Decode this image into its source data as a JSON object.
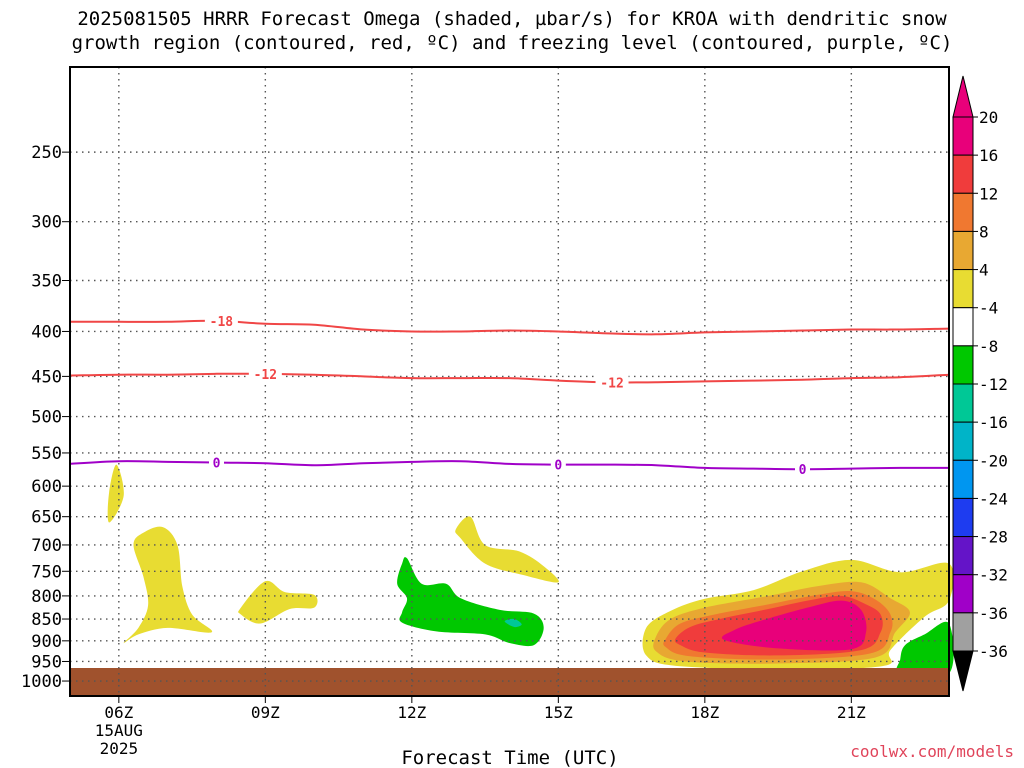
{
  "title": {
    "line1": "2025081505 HRRR Forecast Omega (shaded, µbar/s) for KROA with dendritic snow",
    "line2": "growth region (contoured, red, ºC) and freezing level (contoured, purple, ºC)"
  },
  "credit": "coolwx.com/models",
  "chart_data": {
    "type": "contour",
    "xlabel": "Forecast Time (UTC)",
    "ylabel": "",
    "x_ticks": [
      {
        "hour": 6,
        "label": "06Z",
        "sub": [
          "15AUG",
          "2025"
        ]
      },
      {
        "hour": 9,
        "label": "09Z"
      },
      {
        "hour": 12,
        "label": "12Z"
      },
      {
        "hour": 15,
        "label": "15Z"
      },
      {
        "hour": 18,
        "label": "18Z"
      },
      {
        "hour": 21,
        "label": "21Z"
      }
    ],
    "xlim": [
      5,
      23
    ],
    "y_ticks": [
      250,
      300,
      350,
      400,
      450,
      500,
      550,
      600,
      650,
      700,
      750,
      800,
      850,
      900,
      950,
      1000
    ],
    "ylim": [
      1040,
      200
    ],
    "y_scale": "log",
    "grid": true,
    "colorbar": {
      "bins": [
        {
          "label": "20",
          "color": "#e8007a"
        },
        {
          "label": "16",
          "color": "#f03c3c"
        },
        {
          "label": "12",
          "color": "#f07830"
        },
        {
          "label": "8",
          "color": "#e8a832"
        },
        {
          "label": "4",
          "color": "#e8dc32"
        },
        {
          "label": "-4",
          "color": "#ffffff"
        },
        {
          "label": "-8",
          "color": "#00c800"
        },
        {
          "label": "-12",
          "color": "#00c896"
        },
        {
          "label": "-16",
          "color": "#00b4c8"
        },
        {
          "label": "-20",
          "color": "#0096f0"
        },
        {
          "label": "-24",
          "color": "#1e3cf0"
        },
        {
          "label": "-28",
          "color": "#6414c8"
        },
        {
          "label": "-32",
          "color": "#a000c8"
        },
        {
          "label": "-36",
          "color": "#a0a0a0"
        }
      ],
      "top_arrow_color": "#e8007a",
      "bottom_arrow_color": "#000000"
    },
    "contours": [
      {
        "name": "-18",
        "color": "#f04646",
        "points": [
          [
            5,
            390
          ],
          [
            6,
            390
          ],
          [
            7,
            390
          ],
          [
            8,
            389
          ],
          [
            9,
            392
          ],
          [
            10,
            393
          ],
          [
            11,
            398
          ],
          [
            12,
            400
          ],
          [
            13,
            400
          ],
          [
            14,
            399
          ],
          [
            15,
            400
          ],
          [
            16,
            402
          ],
          [
            17,
            403
          ],
          [
            18,
            401
          ],
          [
            19,
            400
          ],
          [
            20,
            399
          ],
          [
            21,
            398
          ],
          [
            22,
            398
          ],
          [
            23,
            397
          ]
        ],
        "labels": [
          {
            "x": 8.1,
            "text": "-18"
          }
        ]
      },
      {
        "name": "-12",
        "color": "#f04646",
        "points": [
          [
            5,
            449
          ],
          [
            6,
            448
          ],
          [
            7,
            448
          ],
          [
            8,
            447
          ],
          [
            9,
            447
          ],
          [
            10,
            448
          ],
          [
            11,
            450
          ],
          [
            12,
            452
          ],
          [
            13,
            452
          ],
          [
            14,
            452
          ],
          [
            15,
            455
          ],
          [
            16,
            457
          ],
          [
            17,
            457
          ],
          [
            18,
            456
          ],
          [
            19,
            455
          ],
          [
            20,
            454
          ],
          [
            21,
            452
          ],
          [
            22,
            451
          ],
          [
            23,
            448
          ]
        ],
        "labels": [
          {
            "x": 9.0,
            "text": "-12"
          },
          {
            "x": 16.1,
            "text": "-12"
          }
        ]
      },
      {
        "name": "0",
        "color": "#a000c8",
        "points": [
          [
            5,
            566
          ],
          [
            6,
            562
          ],
          [
            7,
            563
          ],
          [
            8,
            564
          ],
          [
            9,
            565
          ],
          [
            10,
            568
          ],
          [
            11,
            565
          ],
          [
            12,
            563
          ],
          [
            13,
            562
          ],
          [
            14,
            566
          ],
          [
            15,
            567
          ],
          [
            16,
            567
          ],
          [
            17,
            568
          ],
          [
            18,
            572
          ],
          [
            19,
            573
          ],
          [
            20,
            574
          ],
          [
            21,
            573
          ],
          [
            22,
            572
          ],
          [
            23,
            572
          ]
        ],
        "labels": [
          {
            "x": 8.0,
            "text": "0"
          },
          {
            "x": 15.0,
            "text": "0"
          },
          {
            "x": 20.0,
            "text": "0"
          }
        ]
      }
    ],
    "shaded_regions": [
      {
        "name": "omega-4-8",
        "color": "#e8dc32",
        "points": [
          [
            5.8,
            660
          ],
          [
            6.1,
            615
          ],
          [
            5.95,
            567
          ],
          [
            5.8,
            610
          ]
        ]
      },
      {
        "name": "omega-4-8",
        "color": "#e8dc32",
        "points": [
          [
            6.1,
            905
          ],
          [
            6.4,
            885
          ],
          [
            7.0,
            870
          ],
          [
            7.9,
            880
          ],
          [
            7.5,
            840
          ],
          [
            7.3,
            780
          ],
          [
            7.2,
            700
          ],
          [
            6.9,
            668
          ],
          [
            6.5,
            678
          ],
          [
            6.3,
            700
          ],
          [
            6.5,
            760
          ],
          [
            6.6,
            820
          ],
          [
            6.4,
            870
          ]
        ]
      },
      {
        "name": "omega-4-8",
        "color": "#e8dc32",
        "points": [
          [
            8.5,
            840
          ],
          [
            8.9,
            860
          ],
          [
            9.5,
            828
          ],
          [
            10.0,
            825
          ],
          [
            10.0,
            798
          ],
          [
            9.4,
            792
          ],
          [
            9.0,
            770
          ],
          [
            8.5,
            825
          ]
        ]
      },
      {
        "name": "omega-4-8",
        "color": "#e8dc32",
        "points": [
          [
            13.0,
            688
          ],
          [
            13.5,
            735
          ],
          [
            14.3,
            758
          ],
          [
            15.0,
            772
          ],
          [
            14.7,
            740
          ],
          [
            14.2,
            712
          ],
          [
            13.5,
            700
          ],
          [
            13.2,
            650
          ],
          [
            12.9,
            672
          ]
        ]
      },
      {
        "name": "omega-4-8",
        "color": "#e8dc32",
        "points": [
          [
            16.8,
            935
          ],
          [
            17.5,
            962
          ],
          [
            20.0,
            970
          ],
          [
            21.7,
            960
          ],
          [
            21.8,
            922
          ],
          [
            22.5,
            845
          ],
          [
            23.0,
            810
          ],
          [
            23.0,
            735
          ],
          [
            22.0,
            752
          ],
          [
            21.0,
            728
          ],
          [
            20.0,
            750
          ],
          [
            19.0,
            788
          ],
          [
            18.0,
            806
          ],
          [
            17.3,
            832
          ],
          [
            16.8,
            870
          ]
        ]
      },
      {
        "name": "omega-8-12",
        "color": "#e8a832",
        "points": [
          [
            17.0,
            925
          ],
          [
            17.6,
            950
          ],
          [
            19.5,
            955
          ],
          [
            21.5,
            940
          ],
          [
            21.9,
            880
          ],
          [
            22.2,
            835
          ],
          [
            21.8,
            805
          ],
          [
            21.2,
            772
          ],
          [
            20.3,
            780
          ],
          [
            19.3,
            800
          ],
          [
            18.0,
            825
          ],
          [
            17.3,
            850
          ],
          [
            17.0,
            890
          ]
        ]
      },
      {
        "name": "omega-12-16",
        "color": "#f07830",
        "points": [
          [
            17.2,
            915
          ],
          [
            17.7,
            937
          ],
          [
            19.5,
            945
          ],
          [
            21.4,
            930
          ],
          [
            21.8,
            880
          ],
          [
            21.8,
            840
          ],
          [
            21.5,
            808
          ],
          [
            21.0,
            790
          ],
          [
            20.3,
            798
          ],
          [
            19.3,
            818
          ],
          [
            18.2,
            840
          ],
          [
            17.5,
            860
          ],
          [
            17.2,
            895
          ]
        ]
      },
      {
        "name": "omega-16-20",
        "color": "#f03c3c",
        "points": [
          [
            17.5,
            910
          ],
          [
            18.0,
            928
          ],
          [
            19.5,
            935
          ],
          [
            21.2,
            922
          ],
          [
            21.6,
            880
          ],
          [
            21.6,
            840
          ],
          [
            21.3,
            818
          ],
          [
            20.8,
            800
          ],
          [
            20.1,
            810
          ],
          [
            19.3,
            828
          ],
          [
            18.3,
            850
          ],
          [
            17.7,
            868
          ],
          [
            17.4,
            895
          ]
        ]
      },
      {
        "name": "omega-20plus",
        "color": "#e8007a",
        "points": [
          [
            18.4,
            898
          ],
          [
            19.5,
            918
          ],
          [
            21.0,
            920
          ],
          [
            21.3,
            880
          ],
          [
            21.2,
            830
          ],
          [
            20.8,
            810
          ],
          [
            20.1,
            825
          ],
          [
            19.2,
            852
          ],
          [
            18.6,
            875
          ]
        ]
      },
      {
        "name": "omega-neg4-neg8",
        "color": "#00c800",
        "points": [
          [
            11.8,
            858
          ],
          [
            12.5,
            878
          ],
          [
            13.5,
            885
          ],
          [
            14.0,
            905
          ],
          [
            14.5,
            910
          ],
          [
            14.7,
            870
          ],
          [
            14.5,
            838
          ],
          [
            13.8,
            830
          ],
          [
            13.0,
            805
          ],
          [
            12.7,
            775
          ],
          [
            12.2,
            775
          ],
          [
            11.9,
            725
          ],
          [
            11.8,
            735
          ],
          [
            11.7,
            775
          ],
          [
            11.9,
            805
          ],
          [
            11.8,
            835
          ]
        ]
      },
      {
        "name": "omega-neg8-neg12",
        "color": "#00c896",
        "points": [
          [
            13.9,
            855
          ],
          [
            14.1,
            868
          ],
          [
            14.25,
            862
          ],
          [
            14.1,
            850
          ]
        ]
      },
      {
        "name": "omega-neg4-neg8",
        "color": "#00c800",
        "points": [
          [
            22.0,
            980
          ],
          [
            23.0,
            980
          ],
          [
            23.0,
            860
          ],
          [
            22.5,
            885
          ],
          [
            22.1,
            910
          ],
          [
            22.0,
            945
          ]
        ]
      }
    ]
  }
}
